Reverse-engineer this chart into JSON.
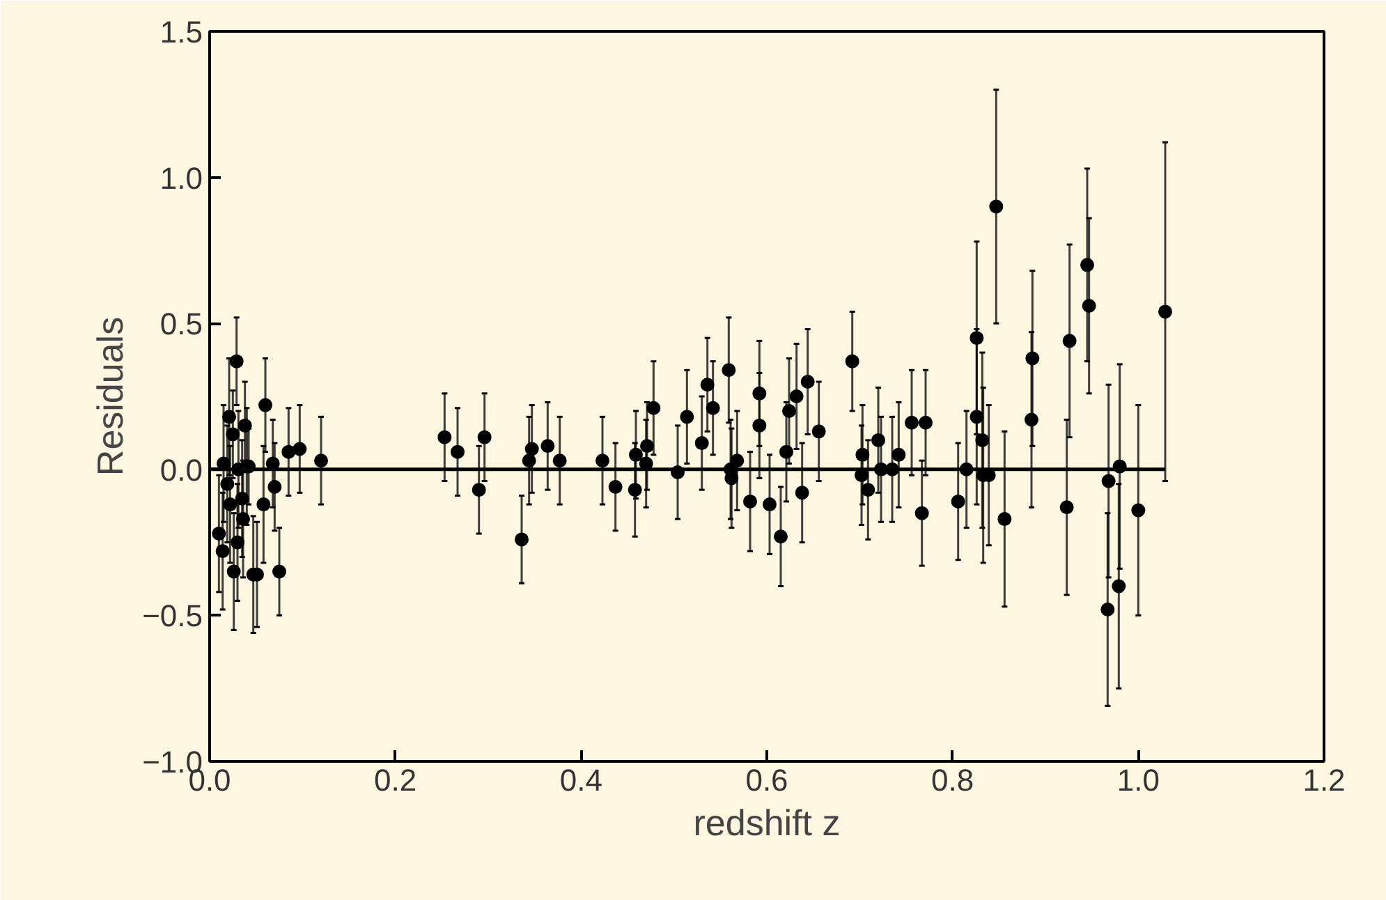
{
  "chart_data": {
    "type": "scatter",
    "xlabel": "redshift z",
    "ylabel": "Residuals",
    "xlim": [
      0,
      1.2
    ],
    "ylim": [
      -1.0,
      1.5
    ],
    "xticks": [
      {
        "value": 0,
        "label": "0.0"
      },
      0.2,
      0.4,
      0.6,
      0.8,
      {
        "value": 1.0,
        "label": "1.0"
      },
      1.2
    ],
    "yticks": [
      {
        "value": -1.0,
        "label": "−1.0"
      },
      {
        "value": -0.5,
        "label": "−0.5"
      },
      {
        "value": 0,
        "label": "0.0"
      },
      0.5,
      {
        "value": 1.0,
        "label": "1.0"
      },
      1.5
    ],
    "grid": false,
    "series": [
      {
        "color": "#000000",
        "marker": "circle",
        "x": [
          0.029,
          0.021,
          0.025,
          0.038,
          0.06,
          0.015,
          0.019,
          0.031,
          0.04,
          0.042,
          0.01,
          0.014,
          0.022,
          0.026,
          0.036,
          0.047,
          0.051,
          0.058,
          0.068,
          0.07,
          0.075,
          0.085,
          0.097,
          0.12,
          0.035,
          0.03,
          0.253,
          0.267,
          0.29,
          0.296,
          0.336,
          0.344,
          0.347,
          0.364,
          0.377,
          0.423,
          0.437,
          0.458,
          0.459,
          0.47,
          0.471,
          0.478,
          0.504,
          0.514,
          0.53,
          0.536,
          0.542,
          0.559,
          0.561,
          0.562,
          0.568,
          0.582,
          0.592,
          0.592,
          0.603,
          0.615,
          0.624,
          0.621,
          0.638,
          0.632,
          0.644,
          0.656,
          0.692,
          0.703,
          0.702,
          0.709,
          0.72,
          0.723,
          0.735,
          0.742,
          0.756,
          0.767,
          0.771,
          0.806,
          0.815,
          0.826,
          0.826,
          0.832,
          0.833,
          0.839,
          0.847,
          0.856,
          0.886,
          0.885,
          0.923,
          0.926,
          0.945,
          0.947,
          0.967,
          0.968,
          0.979,
          0.98,
          1.0,
          1.029
        ],
        "values": [
          0.37,
          0.18,
          0.12,
          0.15,
          0.22,
          0.02,
          -0.05,
          0.0,
          0.01,
          0.01,
          -0.22,
          -0.28,
          -0.12,
          -0.35,
          -0.17,
          -0.36,
          -0.36,
          -0.12,
          0.02,
          -0.06,
          -0.35,
          0.06,
          0.07,
          0.03,
          -0.1,
          -0.25,
          0.11,
          0.06,
          -0.07,
          0.11,
          -0.24,
          0.03,
          0.07,
          0.08,
          0.03,
          0.03,
          -0.06,
          -0.07,
          0.05,
          0.02,
          0.08,
          0.21,
          -0.01,
          0.18,
          0.09,
          0.29,
          0.21,
          0.34,
          0.0,
          -0.03,
          0.03,
          -0.11,
          0.26,
          0.15,
          -0.12,
          -0.23,
          0.2,
          0.06,
          -0.08,
          0.25,
          0.3,
          0.13,
          0.37,
          0.05,
          -0.02,
          -0.07,
          0.1,
          0.0,
          0.0,
          0.05,
          0.16,
          -0.15,
          0.16,
          -0.11,
          0.0,
          0.45,
          0.18,
          0.1,
          -0.02,
          -0.02,
          0.9,
          -0.17,
          0.38,
          0.17,
          -0.13,
          0.44,
          0.7,
          0.56,
          -0.48,
          -0.04,
          -0.4,
          0.01,
          -0.14,
          0.54
        ],
        "errors": [
          0.15,
          0.2,
          0.15,
          0.15,
          0.16,
          0.2,
          0.2,
          0.2,
          0.2,
          0.13,
          0.2,
          0.2,
          0.2,
          0.2,
          0.2,
          0.2,
          0.18,
          0.2,
          0.15,
          0.15,
          0.15,
          0.15,
          0.15,
          0.15,
          0.2,
          0.2,
          0.15,
          0.15,
          0.15,
          0.15,
          0.15,
          0.15,
          0.15,
          0.15,
          0.15,
          0.15,
          0.15,
          0.16,
          0.15,
          0.15,
          0.15,
          0.16,
          0.16,
          0.16,
          0.16,
          0.16,
          0.16,
          0.18,
          0.17,
          0.17,
          0.17,
          0.17,
          0.18,
          0.18,
          0.17,
          0.17,
          0.18,
          0.17,
          0.17,
          0.18,
          0.18,
          0.17,
          0.17,
          0.17,
          0.17,
          0.17,
          0.18,
          0.18,
          0.18,
          0.18,
          0.18,
          0.18,
          0.18,
          0.2,
          0.2,
          0.33,
          0.3,
          0.3,
          0.3,
          0.24,
          0.4,
          0.3,
          0.3,
          0.3,
          0.3,
          0.33,
          0.33,
          0.3,
          0.33,
          0.33,
          0.35,
          0.35,
          0.36,
          0.58
        ]
      },
      {
        "type": "line",
        "color": "#000000",
        "marker": "none",
        "x": [
          0,
          1.029
        ],
        "values": [
          0,
          0
        ]
      }
    ]
  }
}
